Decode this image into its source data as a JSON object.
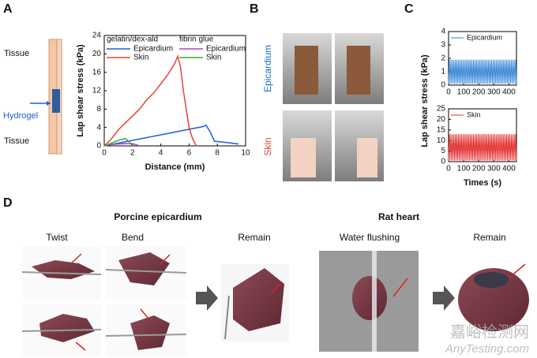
{
  "panels": {
    "a": "A",
    "b": "B",
    "c": "C",
    "d": "D"
  },
  "schematic": {
    "tissue_top": "Tissue",
    "hydrogel": "Hydrogel",
    "tissue_bottom": "Tissue"
  },
  "panel_b": {
    "epicardium": "Epicardium",
    "skin": "Skin"
  },
  "panel_d": {
    "porcine_title": "Porcine epicardium",
    "rat_title": "Rat heart",
    "twist": "Twist",
    "bend": "Bend",
    "remain_1": "Remain",
    "water_flushing": "Water flushing",
    "remain_2": "Remain"
  },
  "watermark": {
    "cn": "嘉峪检测网",
    "en": "AnyTesting.com"
  },
  "chart_data": [
    {
      "type": "line",
      "xlabel": "Distance (mm)",
      "ylabel": "Lap shear stress (kPa)",
      "legend_titles": [
        "gelatin/dex-ald",
        "fibrin glue"
      ],
      "xlim": [
        0,
        10
      ],
      "xticks": [
        0,
        2,
        4,
        6,
        8,
        10
      ],
      "ylim": [
        0,
        24
      ],
      "yticks": [
        0,
        4,
        8,
        12,
        16,
        20,
        24
      ],
      "series": [
        {
          "name": "Epicardium",
          "color": "#1f5fd6",
          "x": [
            0,
            0.5,
            1,
            2,
            3,
            4,
            5,
            6,
            7,
            7.2,
            7.5,
            7.8,
            8.5,
            9,
            9.5
          ],
          "values": [
            0,
            0.3,
            0.6,
            1.2,
            1.8,
            2.4,
            3,
            3.6,
            4.2,
            4.5,
            3,
            1,
            0.8,
            0.6,
            0.4
          ]
        },
        {
          "name": "Skin",
          "color": "#e8413c",
          "x": [
            0,
            0.5,
            1,
            1.5,
            2,
            2.5,
            3,
            3.5,
            4,
            4.5,
            5,
            5.2,
            5.4,
            5.6,
            5.8,
            6,
            6.2,
            6.5
          ],
          "values": [
            0,
            1.5,
            3.5,
            5,
            6.5,
            8,
            10,
            11.5,
            13.5,
            15.5,
            18,
            19.5,
            17,
            12,
            8,
            4,
            2,
            0
          ]
        },
        {
          "name": "Epicardium",
          "color": "#b040c0",
          "x": [
            0,
            0.5,
            1,
            1.5,
            2,
            2.5
          ],
          "values": [
            0,
            0.3,
            0.4,
            0.5,
            0.5,
            0
          ]
        },
        {
          "name": "Skin",
          "color": "#3aa83a",
          "x": [
            0,
            0.5,
            1,
            1.5,
            1.8,
            2
          ],
          "values": [
            0,
            0.6,
            1.2,
            1.6,
            0.8,
            0
          ]
        }
      ]
    },
    {
      "type": "line",
      "ylabel": "Lap shear stress (kPa)",
      "xlim": [
        0,
        450
      ],
      "xticks": [
        0,
        100,
        200,
        300,
        400
      ],
      "ylim": [
        0,
        4
      ],
      "yticks": [
        0,
        1,
        2,
        3,
        4
      ],
      "series": [
        {
          "name": "Epicardium",
          "color": "#2a7fd4",
          "x": [
            0,
            5,
            10,
            15,
            20,
            25,
            30,
            35,
            40,
            45,
            50,
            55,
            60,
            65,
            70,
            75,
            80,
            85,
            90,
            95,
            100,
            105,
            110,
            115,
            120,
            125,
            130,
            135,
            140,
            145,
            150,
            155,
            160,
            165,
            170,
            175,
            180,
            185,
            190,
            195,
            200,
            205,
            210,
            215,
            220,
            225,
            230,
            235,
            240,
            245,
            250,
            255,
            260,
            265,
            270,
            275,
            280,
            285,
            290,
            295,
            300,
            305,
            310,
            315,
            320,
            325,
            330,
            335,
            340,
            345,
            350,
            355,
            360,
            365,
            370,
            375,
            380,
            385,
            390,
            395,
            400,
            405,
            410,
            415,
            420,
            425,
            430,
            435,
            440,
            445,
            450
          ],
          "values": [
            0.1,
            1.9,
            0.1,
            1.9,
            0.1,
            1.9,
            0.1,
            1.9,
            0.1,
            1.9,
            0.1,
            1.9,
            0.1,
            1.9,
            0.1,
            1.9,
            0.1,
            1.9,
            0.1,
            1.9,
            0.1,
            1.9,
            0.1,
            1.9,
            0.1,
            1.9,
            0.1,
            1.9,
            0.1,
            1.9,
            0.1,
            1.9,
            0.1,
            1.9,
            0.1,
            1.9,
            0.1,
            1.9,
            0.1,
            1.9,
            0.1,
            1.9,
            0.1,
            1.9,
            0.1,
            1.9,
            0.1,
            1.9,
            0.1,
            1.9,
            0.1,
            1.9,
            0.1,
            1.9,
            0.1,
            1.9,
            0.1,
            1.9,
            0.1,
            1.9,
            0.1,
            1.9,
            0.1,
            1.9,
            0.1,
            1.9,
            0.1,
            1.9,
            0.1,
            1.9,
            0.1,
            1.9,
            0.1,
            1.9,
            0.1,
            1.9,
            0.1,
            1.9,
            0.1,
            1.9,
            0.1,
            1.9,
            0.1,
            1.9,
            0.1,
            1.9,
            0.1,
            1.9,
            0.1,
            1.9,
            0.1
          ]
        }
      ]
    },
    {
      "type": "line",
      "xlabel": "Times (s)",
      "xlim": [
        0,
        450
      ],
      "xticks": [
        0,
        100,
        200,
        300,
        400
      ],
      "ylim": [
        0,
        25
      ],
      "yticks": [
        0,
        5,
        10,
        15,
        20,
        25
      ],
      "series": [
        {
          "name": "Skin",
          "color": "#e02020",
          "x": [
            0,
            5,
            10,
            15,
            20,
            25,
            30,
            35,
            40,
            45,
            50,
            55,
            60,
            65,
            70,
            75,
            80,
            85,
            90,
            95,
            100,
            105,
            110,
            115,
            120,
            125,
            130,
            135,
            140,
            145,
            150,
            155,
            160,
            165,
            170,
            175,
            180,
            185,
            190,
            195,
            200,
            205,
            210,
            215,
            220,
            225,
            230,
            235,
            240,
            245,
            250,
            255,
            260,
            265,
            270,
            275,
            280,
            285,
            290,
            295,
            300,
            305,
            310,
            315,
            320,
            325,
            330,
            335,
            340,
            345,
            350,
            355,
            360,
            365,
            370,
            375,
            380,
            385,
            390,
            395,
            400,
            405,
            410,
            415,
            420,
            425,
            430,
            435,
            440,
            445,
            450
          ],
          "values": [
            0.5,
            13,
            0.5,
            13,
            0.5,
            13,
            0.5,
            13,
            0.5,
            13,
            0.5,
            13,
            0.5,
            13,
            0.5,
            13,
            0.5,
            13,
            0.5,
            13,
            0.5,
            13,
            0.5,
            13,
            0.5,
            13,
            0.5,
            13,
            0.5,
            13,
            0.5,
            13,
            0.5,
            13,
            0.5,
            13,
            0.5,
            13,
            0.5,
            13,
            0.5,
            13,
            0.5,
            13,
            0.5,
            13,
            0.5,
            13,
            0.5,
            13,
            0.5,
            13,
            0.5,
            13,
            0.5,
            13,
            0.5,
            13,
            0.5,
            13,
            0.5,
            13,
            0.5,
            13,
            0.5,
            13,
            0.5,
            13,
            0.5,
            13,
            0.5,
            13,
            0.5,
            13,
            0.5,
            13,
            0.5,
            13,
            0.5,
            13,
            0.5,
            13,
            0.5,
            13,
            0.5,
            13,
            0.5,
            13,
            0.5,
            13,
            0.5
          ]
        }
      ]
    }
  ]
}
